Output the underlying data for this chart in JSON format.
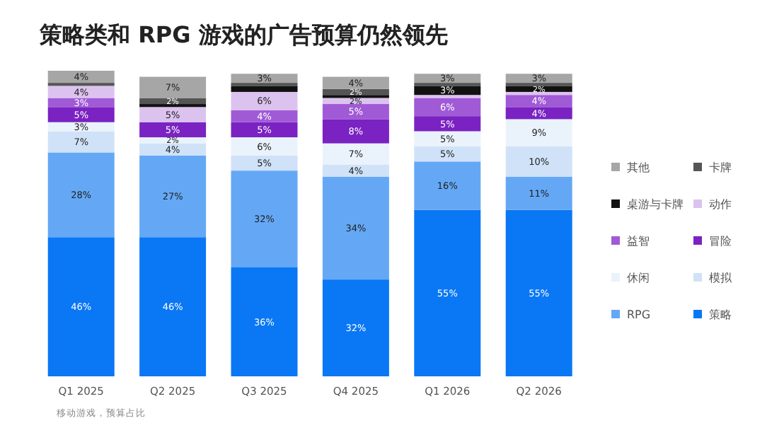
{
  "chart_data": {
    "type": "bar",
    "stacked": true,
    "title": "策略类和 RPG 游戏的广告预算仍然领先",
    "categories": [
      "Q1 2025",
      "Q2 2025",
      "Q3 2025",
      "Q4 2025",
      "Q1 2026",
      "Q2 2026"
    ],
    "legend": "right",
    "annotations": [
      "移动游戏，预算占比"
    ],
    "series": [
      {
        "name": "策略",
        "color": "#0a77f5",
        "values": [
          46,
          46,
          36,
          32,
          55,
          55
        ],
        "value_labels": [
          "46%",
          "46%",
          "36%",
          "32%",
          "55%",
          "55%"
        ]
      },
      {
        "name": "RPG",
        "color": "#64a8f5",
        "values": [
          28,
          27,
          32,
          34,
          16,
          11
        ],
        "value_labels": [
          "28%",
          "27%",
          "32%",
          "34%",
          "16%",
          "11%"
        ]
      },
      {
        "name": "模拟",
        "color": "#cfe2f8",
        "values": [
          7,
          4,
          5,
          4,
          5,
          10
        ],
        "value_labels": [
          "7%",
          "4%",
          "5%",
          "4%",
          "5%",
          "10%"
        ]
      },
      {
        "name": "休闲",
        "color": "#eaf2fb",
        "values": [
          3,
          2,
          6,
          7,
          5,
          9
        ],
        "value_labels": [
          "3%",
          "2%",
          "6%",
          "7%",
          "5%",
          "9%"
        ]
      },
      {
        "name": "冒险",
        "color": "#7a22c2",
        "values": [
          5,
          5,
          5,
          8,
          5,
          4
        ],
        "value_labels": [
          "5%",
          "5%",
          "5%",
          "8%",
          "5%",
          "4%"
        ]
      },
      {
        "name": "益智",
        "color": "#a05ad6",
        "values": [
          3,
          null,
          4,
          5,
          6,
          4
        ],
        "value_labels": [
          "3%",
          null,
          "4%",
          "5%",
          "6%",
          "4%"
        ]
      },
      {
        "name": "动作",
        "color": "#dcc3ef",
        "values": [
          4,
          5,
          6,
          2,
          1,
          1
        ],
        "value_labels": [
          "4%",
          "5%",
          "6%",
          "2%",
          null,
          null
        ]
      },
      {
        "name": "桌游与卡牌",
        "color": "#111111",
        "values": [
          null,
          1,
          2,
          1,
          3,
          2
        ],
        "value_labels": [
          null,
          null,
          null,
          null,
          "3%",
          "2%"
        ]
      },
      {
        "name": "卡牌",
        "color": "#555555",
        "values": [
          1,
          2,
          1,
          2,
          1,
          1
        ],
        "value_labels": [
          null,
          "2%",
          null,
          "2%",
          null,
          null
        ]
      },
      {
        "name": "其他",
        "color": "#a6a6a6",
        "values": [
          4,
          7,
          3,
          4,
          3,
          3
        ],
        "value_labels": [
          "4%",
          "7%",
          "3%",
          "4%",
          "3%",
          "3%"
        ]
      }
    ]
  }
}
